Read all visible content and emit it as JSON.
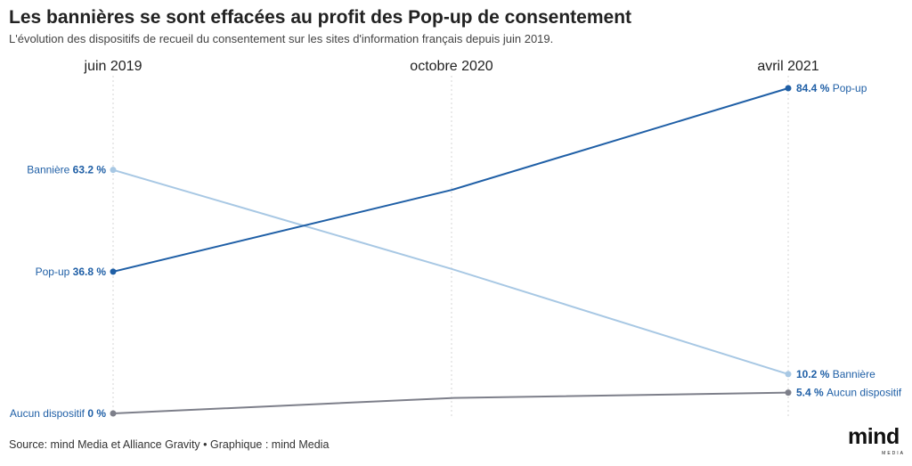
{
  "title": "Les bannières se sont effacées au profit des Pop-up de consentement",
  "subtitle": "L'évolution des dispositifs de recueil du consentement sur les sites d'information français depuis juin 2019.",
  "source": "Source: mind Media et Alliance Gravity • Graphique : mind Media",
  "logo": {
    "word": "mind",
    "sub": "MEDIA"
  },
  "chart_data": {
    "type": "line",
    "title": "Les bannières se sont effacées au profit des Pop-up de consentement",
    "categories": [
      "juin 2019",
      "octobre 2020",
      "avril 2021"
    ],
    "ylim": [
      0,
      90
    ],
    "grid": "vertical dotted lines at each category",
    "legend": "inline labels at line ends",
    "series": [
      {
        "name": "Pop-up",
        "values": [
          36.8,
          58.0,
          84.4
        ],
        "color": "#1f5fa6",
        "start_label": "36.8 %",
        "end_label": "84.4 %"
      },
      {
        "name": "Bannière",
        "values": [
          63.2,
          37.5,
          10.2
        ],
        "color": "#a8c8e4",
        "start_label": "63.2 %",
        "end_label": "10.2 %"
      },
      {
        "name": "Aucun dispositif",
        "values": [
          0,
          4.0,
          5.4
        ],
        "color": "#7d7f8a",
        "start_label": "0 %",
        "end_label": "5.4 %"
      }
    ]
  }
}
